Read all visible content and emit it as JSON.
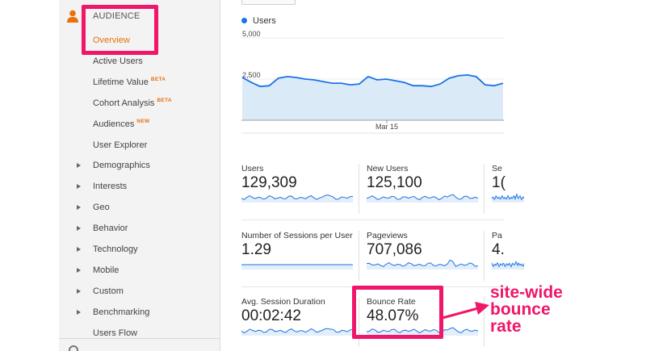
{
  "sidebar": {
    "section_icon": "person-icon",
    "section_label": "AUDIENCE",
    "items": [
      {
        "label": "Overview",
        "active": true,
        "badge": "",
        "expandable": false
      },
      {
        "label": "Active Users",
        "active": false,
        "badge": "",
        "expandable": false
      },
      {
        "label": "Lifetime Value",
        "active": false,
        "badge": "BETA",
        "expandable": false
      },
      {
        "label": "Cohort Analysis",
        "active": false,
        "badge": "BETA",
        "expandable": false
      },
      {
        "label": "Audiences",
        "active": false,
        "badge": "NEW",
        "expandable": false
      },
      {
        "label": "User Explorer",
        "active": false,
        "badge": "",
        "expandable": false
      },
      {
        "label": "Demographics",
        "active": false,
        "badge": "",
        "expandable": true
      },
      {
        "label": "Interests",
        "active": false,
        "badge": "",
        "expandable": true
      },
      {
        "label": "Geo",
        "active": false,
        "badge": "",
        "expandable": true
      },
      {
        "label": "Behavior",
        "active": false,
        "badge": "",
        "expandable": true
      },
      {
        "label": "Technology",
        "active": false,
        "badge": "",
        "expandable": true
      },
      {
        "label": "Mobile",
        "active": false,
        "badge": "",
        "expandable": true
      },
      {
        "label": "Custom",
        "active": false,
        "badge": "",
        "expandable": true
      },
      {
        "label": "Benchmarking",
        "active": false,
        "badge": "",
        "expandable": true
      },
      {
        "label": "Users Flow",
        "active": false,
        "badge": "",
        "expandable": false
      }
    ]
  },
  "chart": {
    "legend": "Users",
    "series_color": "#1a73e8",
    "fill_color": "#dbeaf7",
    "y_ticks": [
      "5,000",
      "2,500"
    ],
    "x_label": "Mar 15",
    "ylim": [
      0,
      5000
    ],
    "values": [
      2600,
      2300,
      2050,
      2100,
      2550,
      2650,
      2600,
      2500,
      2450,
      2350,
      2250,
      2250,
      2150,
      2200,
      2650,
      2450,
      2500,
      2400,
      2300,
      2100,
      2100,
      2050,
      2200,
      2550,
      2700,
      2750,
      2650,
      2150,
      2100,
      2250
    ]
  },
  "metrics": [
    {
      "label": "Users",
      "value": "129,309"
    },
    {
      "label": "New Users",
      "value": "125,100"
    },
    {
      "label": "Se",
      "value": "1("
    },
    {
      "label": "Number of Sessions per User",
      "value": "1.29"
    },
    {
      "label": "Pageviews",
      "value": "707,086"
    },
    {
      "label": "Pa",
      "value": "4."
    },
    {
      "label": "Avg. Session Duration",
      "value": "00:02:42"
    },
    {
      "label": "Bounce Rate",
      "value": "48.07%"
    }
  ],
  "annotation": {
    "lines": [
      "site-wide",
      "bounce",
      "rate"
    ],
    "color": "#f0166a"
  }
}
